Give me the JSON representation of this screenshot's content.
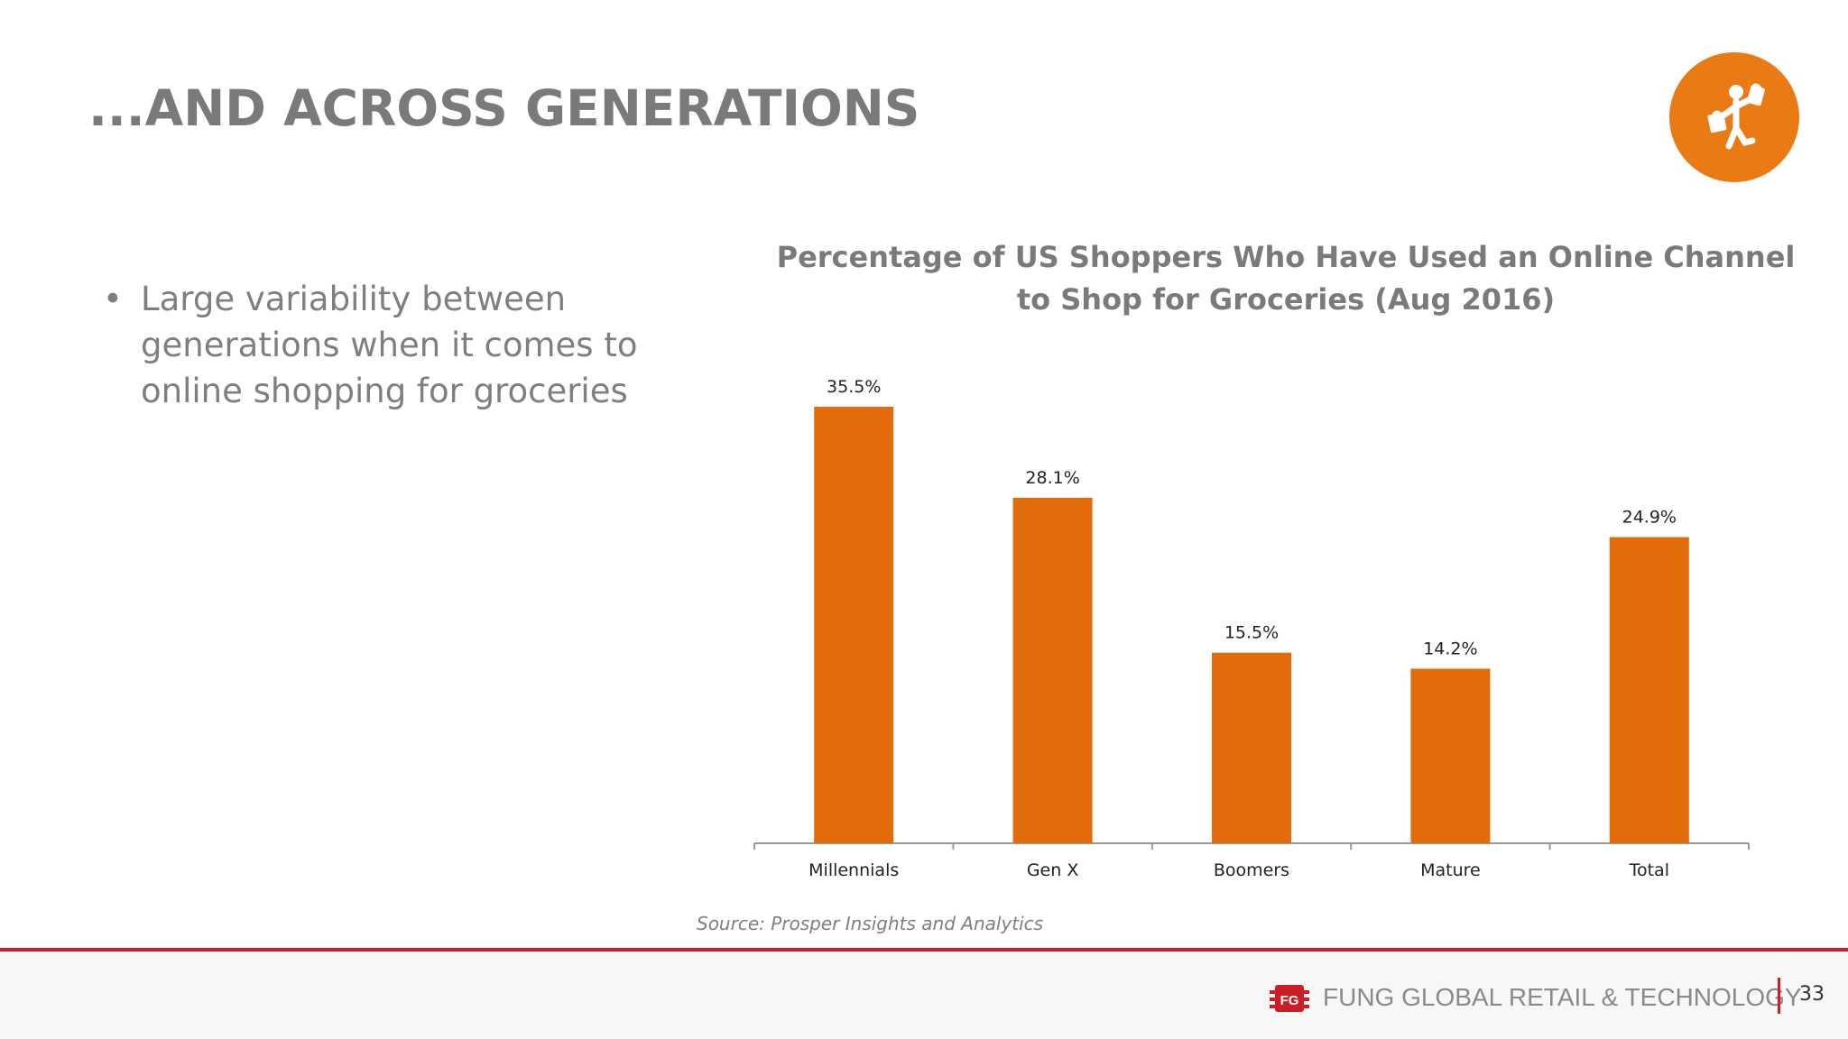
{
  "slide": {
    "title": "...AND ACROSS GENERATIONS",
    "bullets": [
      "Large variability between generations when it comes to online shopping for groceries"
    ],
    "source": "Source: Prosper Insights and Analytics",
    "page_number": "33",
    "badge_icon": "shopper-with-bags-icon",
    "accent_color": "#ea7a14"
  },
  "footer": {
    "brand": "FUNG GLOBAL RETAIL & TECHNOLOGY",
    "logo_letters": "FG",
    "rule_color": "#cc1f25"
  },
  "chart_data": {
    "type": "bar",
    "title": "Percentage of US Shoppers Who Have Used an Online Channel to Shop for Groceries (Aug 2016)",
    "categories": [
      "Millennials",
      "Gen X",
      "Boomers",
      "Mature",
      "Total"
    ],
    "values": [
      35.5,
      28.1,
      15.5,
      14.2,
      24.9
    ],
    "data_labels": [
      "35.5%",
      "28.1%",
      "15.5%",
      "14.2%",
      "24.9%"
    ],
    "ylim": [
      0,
      35.5
    ],
    "grid": false,
    "legend": "none",
    "bar_color": "#e36c0a"
  }
}
